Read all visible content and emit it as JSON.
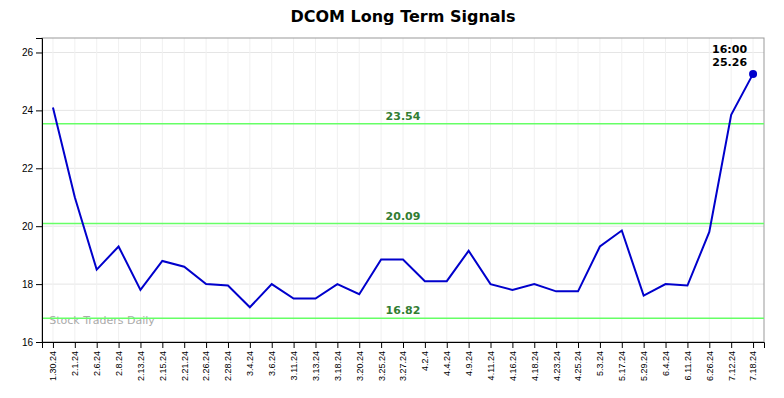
{
  "chart_data": {
    "type": "line",
    "title": "DCOM Long Term Signals",
    "categories": [
      "1.30.24",
      "2.1.24",
      "2.6.24",
      "2.8.24",
      "2.13.24",
      "2.15.24",
      "2.21.24",
      "2.26.24",
      "2.28.24",
      "3.4.24",
      "3.6.24",
      "3.11.24",
      "3.13.24",
      "3.18.24",
      "3.20.24",
      "3.25.24",
      "3.27.24",
      "4.2.4",
      "4.4.24",
      "4.9.24",
      "4.11.24",
      "4.16.24",
      "4.18.24",
      "4.23.24",
      "4.25.24",
      "5.3.24",
      "5.17.24",
      "5.29.24",
      "6.4.24",
      "6.11.24",
      "6.26.24",
      "7.12.24",
      "7.18.24"
    ],
    "values": [
      24.1,
      21.0,
      18.5,
      19.3,
      17.8,
      18.8,
      18.6,
      18.0,
      17.95,
      17.2,
      18.0,
      17.5,
      17.5,
      18.0,
      17.65,
      18.85,
      18.85,
      18.1,
      18.1,
      19.15,
      18.0,
      17.8,
      18.0,
      17.75,
      17.75,
      19.3,
      19.85,
      17.6,
      18.0,
      17.95,
      19.8,
      23.85,
      25.26
    ],
    "color": "#0000cc",
    "ylim": [
      16,
      26.5
    ],
    "yticks": [
      16,
      18,
      20,
      22,
      24,
      26
    ],
    "grid": true,
    "hlines": [
      {
        "value": 23.54,
        "label": "23.54",
        "color": "#66ff66"
      },
      {
        "value": 20.09,
        "label": "20.09",
        "color": "#66ff66"
      },
      {
        "value": 16.82,
        "label": "16.82",
        "color": "#66ff66"
      }
    ],
    "annotations": [
      {
        "text": "16:00\n25.26",
        "value": 25.26
      }
    ],
    "watermark": "Stock Traders Daily"
  }
}
